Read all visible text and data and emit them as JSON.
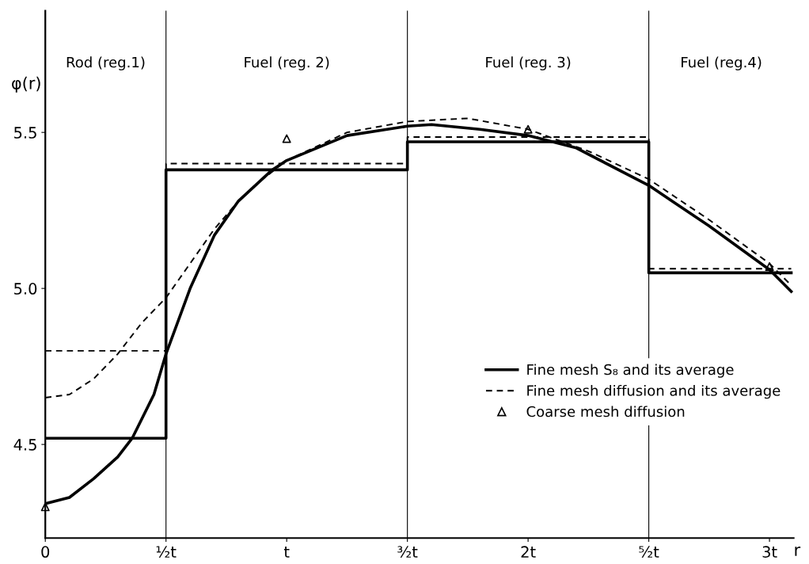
{
  "chart_data": {
    "type": "line",
    "xlabel": "r",
    "ylabel": "φ(r)",
    "xlim": [
      0,
      3.1
    ],
    "ylim": [
      4.2,
      5.89
    ],
    "xticks": [
      {
        "value": 0,
        "label": "0"
      },
      {
        "value": 0.5,
        "label": "½t"
      },
      {
        "value": 1,
        "label": "t"
      },
      {
        "value": 1.5,
        "label": "³⁄₂t"
      },
      {
        "value": 2,
        "label": "2t"
      },
      {
        "value": 2.5,
        "label": "⁵⁄₂t"
      },
      {
        "value": 3,
        "label": "3t"
      }
    ],
    "yticks": [
      {
        "value": 4.5,
        "label": "4.5"
      },
      {
        "value": 5.0,
        "label": "5.0"
      },
      {
        "value": 5.5,
        "label": "5.5"
      }
    ],
    "grid": false,
    "legend": "lower right",
    "series": [
      {
        "name": "Fine mesh S₈ and its average",
        "line_style": "solid",
        "color": "#000000",
        "x": [
          0,
          0.1,
          0.2,
          0.3,
          0.36,
          0.45,
          0.5,
          0.6,
          0.7,
          0.8,
          0.94,
          1.0,
          1.25,
          1.5,
          1.6,
          1.8,
          2.0,
          2.2,
          2.5,
          2.75,
          3.0,
          3.09
        ],
        "values": [
          4.31,
          4.33,
          4.39,
          4.46,
          4.52,
          4.66,
          4.79,
          5.0,
          5.17,
          5.28,
          5.38,
          5.41,
          5.49,
          5.52,
          5.525,
          5.51,
          5.49,
          5.45,
          5.33,
          5.2,
          5.06,
          4.99
        ]
      },
      {
        "type": "step",
        "line_style": "solid",
        "color": "#000000",
        "x": [
          0,
          0.5,
          1.5,
          2.5,
          3.09
        ],
        "values": [
          4.52,
          5.38,
          5.47,
          5.05,
          5.05
        ]
      },
      {
        "name": "Fine mesh diffusion and its average",
        "line_style": "dashed",
        "color": "#000000",
        "x": [
          0,
          0.1,
          0.2,
          0.3,
          0.4,
          0.5,
          0.6,
          0.7,
          0.8,
          0.9,
          1.0,
          1.25,
          1.5,
          1.75,
          2.0,
          2.25,
          2.5,
          2.75,
          3.0,
          3.09
        ],
        "values": [
          4.65,
          4.66,
          4.71,
          4.79,
          4.89,
          4.97,
          5.08,
          5.19,
          5.28,
          5.35,
          5.41,
          5.5,
          5.535,
          5.545,
          5.51,
          5.44,
          5.35,
          5.22,
          5.08,
          5.01
        ]
      },
      {
        "type": "step",
        "line_style": "dashed",
        "color": "#000000",
        "x": [
          0,
          0.5,
          1.5,
          2.5,
          3.09
        ],
        "values": [
          4.8,
          5.4,
          5.485,
          5.063,
          5.063
        ]
      },
      {
        "name": "Coarse mesh diffusion",
        "type": "scatter",
        "marker": "triangle",
        "color": "#000000",
        "x": [
          0,
          1,
          2,
          3
        ],
        "values": [
          4.3,
          5.48,
          5.51,
          5.07
        ]
      }
    ],
    "ref_lines": [
      {
        "axis": "x",
        "value": 0.5,
        "color": "#000000"
      },
      {
        "axis": "x",
        "value": 1.5,
        "color": "#000000"
      },
      {
        "axis": "x",
        "value": 2.5,
        "color": "#000000"
      }
    ],
    "annotations": [
      "Rod (reg.1)",
      "Fuel (reg. 2)",
      "Fuel (reg. 3)",
      "Fuel (reg.4)"
    ]
  }
}
